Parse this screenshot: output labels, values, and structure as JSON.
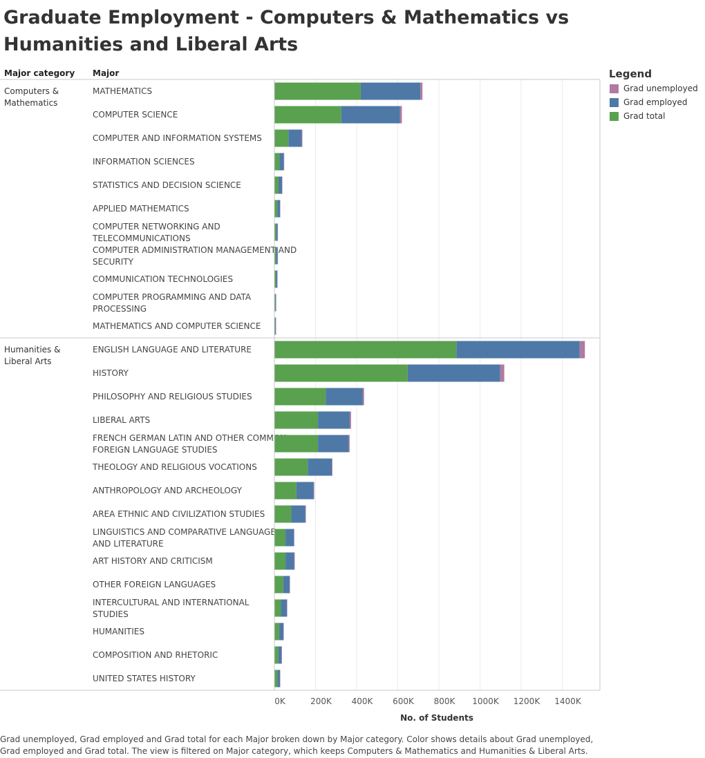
{
  "title": "Graduate Employment - Computers & Mathematics vs Humanities and Liberal Arts",
  "headers": {
    "category": "Major category",
    "major": "Major"
  },
  "legend": {
    "title": "Legend",
    "items": [
      {
        "label": "Grad unemployed",
        "color": "#b07aa1"
      },
      {
        "label": "Grad employed",
        "color": "#4e79a7"
      },
      {
        "label": "Grad total",
        "color": "#59a14f"
      }
    ]
  },
  "footnote": "Grad unemployed, Grad employed and Grad total for each Major broken down by Major category.  Color shows details about Grad unemployed, Grad employed and Grad total. The view is filtered on Major category, which keeps Computers & Mathematics and Humanities & Liberal Arts.",
  "chart_data": {
    "type": "bar",
    "orientation": "horizontal",
    "stacked": true,
    "xlabel": "No. of Students",
    "xlim": [
      0,
      1600000
    ],
    "xticks": [
      0,
      200000,
      400000,
      600000,
      800000,
      1000000,
      1200000,
      1400000
    ],
    "xtick_labels": [
      "0K",
      "200K",
      "400K",
      "600K",
      "800K",
      "1000K",
      "1200K",
      "1400K"
    ],
    "grid": true,
    "legend_position": "top-right",
    "series": [
      {
        "name": "Grad total",
        "color": "#59a14f"
      },
      {
        "name": "Grad employed",
        "color": "#4e79a7"
      },
      {
        "name": "Grad unemployed",
        "color": "#b07aa1"
      }
    ],
    "groups": [
      {
        "category": "Computers & Mathematics",
        "majors": [
          {
            "major": "MATHEMATICS",
            "total": 420000,
            "employed": 290000,
            "unemployed": 10000
          },
          {
            "major": "COMPUTER SCIENCE",
            "total": 325000,
            "employed": 285000,
            "unemployed": 10000
          },
          {
            "major": "COMPUTER AND INFORMATION SYSTEMS",
            "total": 68000,
            "employed": 65000,
            "unemployed": 3000
          },
          {
            "major": "INFORMATION SCIENCES",
            "total": 24000,
            "employed": 22000,
            "unemployed": 1000
          },
          {
            "major": "STATISTICS AND DECISION SCIENCE",
            "total": 20000,
            "employed": 17000,
            "unemployed": 1000
          },
          {
            "major": "APPLIED MATHEMATICS",
            "total": 14000,
            "employed": 13000,
            "unemployed": 500
          },
          {
            "major": "COMPUTER NETWORKING AND TELECOMMUNICATIONS",
            "total": 8000,
            "employed": 7500,
            "unemployed": 500
          },
          {
            "major": "COMPUTER ADMINISTRATION MANAGEMENT AND SECURITY",
            "total": 8000,
            "employed": 7500,
            "unemployed": 500
          },
          {
            "major": "COMMUNICATION TECHNOLOGIES",
            "total": 7000,
            "employed": 6500,
            "unemployed": 500
          },
          {
            "major": "COMPUTER PROGRAMMING AND DATA PROCESSING",
            "total": 4000,
            "employed": 3500,
            "unemployed": 300
          },
          {
            "major": "MATHEMATICS AND COMPUTER SCIENCE",
            "total": 3500,
            "employed": 3000,
            "unemployed": 200
          }
        ]
      },
      {
        "category": "Humanities & Liberal Arts",
        "majors": [
          {
            "major": "ENGLISH LANGUAGE AND LITERATURE",
            "total": 885000,
            "employed": 600000,
            "unemployed": 25000
          },
          {
            "major": "HISTORY",
            "total": 648000,
            "employed": 450000,
            "unemployed": 20000
          },
          {
            "major": "PHILOSOPHY AND RELIGIOUS STUDIES",
            "total": 250000,
            "employed": 180000,
            "unemployed": 6000
          },
          {
            "major": "LIBERAL ARTS",
            "total": 212000,
            "employed": 155000,
            "unemployed": 6000
          },
          {
            "major": "FRENCH GERMAN LATIN AND OTHER COMMON FOREIGN LANGUAGE STUDIES",
            "total": 212000,
            "employed": 150000,
            "unemployed": 4000
          },
          {
            "major": "THEOLOGY AND RELIGIOUS VOCATIONS",
            "total": 162000,
            "employed": 117000,
            "unemployed": 3000
          },
          {
            "major": "ANTHROPOLOGY AND ARCHEOLOGY",
            "total": 107000,
            "employed": 84000,
            "unemployed": 3000
          },
          {
            "major": "AREA ETHNIC AND CIVILIZATION STUDIES",
            "total": 82000,
            "employed": 69000,
            "unemployed": 2000
          },
          {
            "major": "LINGUISTICS AND COMPARATIVE LANGUAGE AND LITERATURE",
            "total": 54000,
            "employed": 41000,
            "unemployed": 2000
          },
          {
            "major": "ART HISTORY AND CRITICISM",
            "total": 54000,
            "employed": 43000,
            "unemployed": 2000
          },
          {
            "major": "OTHER FOREIGN LANGUAGES",
            "total": 43000,
            "employed": 31000,
            "unemployed": 1000
          },
          {
            "major": "INTERCULTURAL AND INTERNATIONAL STUDIES",
            "total": 32000,
            "employed": 29000,
            "unemployed": 1000
          },
          {
            "major": "HUMANITIES",
            "total": 23000,
            "employed": 21000,
            "unemployed": 1000
          },
          {
            "major": "COMPOSITION AND RHETORIC",
            "total": 19000,
            "employed": 16000,
            "unemployed": 1000
          },
          {
            "major": "UNITED STATES HISTORY",
            "total": 15000,
            "employed": 12000,
            "unemployed": 500
          }
        ]
      }
    ]
  }
}
